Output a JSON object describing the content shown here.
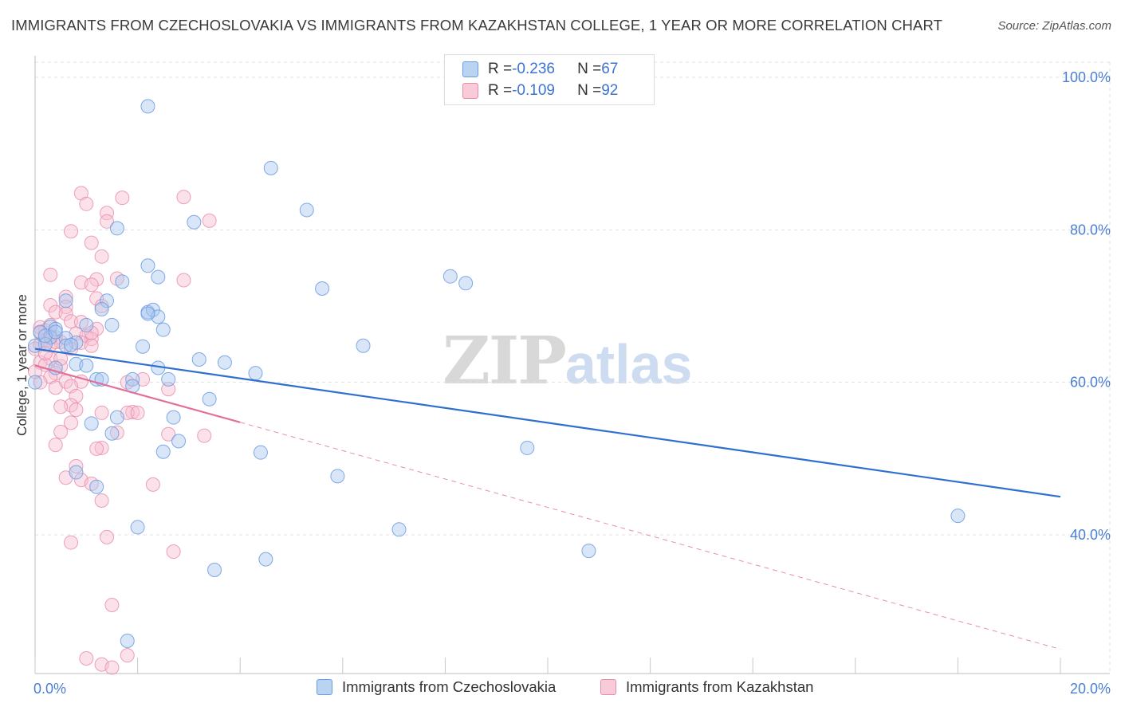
{
  "title": "IMMIGRANTS FROM CZECHOSLOVAKIA VS IMMIGRANTS FROM KAZAKHSTAN COLLEGE, 1 YEAR OR MORE CORRELATION CHART",
  "source": "Source: ZipAtlas.com",
  "watermark": {
    "zip": "ZIP",
    "atlas": "atlas"
  },
  "legend_top": {
    "rows": [
      {
        "r_label": "R = ",
        "r_value": "-0.236",
        "n_label": "N = ",
        "n_value": "67"
      },
      {
        "r_label": "R = ",
        "r_value": "-0.109",
        "n_label": "N = ",
        "n_value": "92"
      }
    ]
  },
  "legend_bottom": [
    "Immigrants from Czechoslovakia",
    "Immigrants from Kazakhstan"
  ],
  "colors": {
    "blue_fill": "#a9c8ef",
    "blue_stroke": "#6b9be0",
    "blue_line": "#2f6fd0",
    "pink_fill": "#f6bfd0",
    "pink_stroke": "#e98aaa",
    "pink_line": "#e2709a",
    "grid": "#e0e0e0",
    "tick_text": "#4a7fd6"
  },
  "chart_data": {
    "type": "scatter",
    "title": "IMMIGRANTS FROM CZECHOSLOVAKIA VS IMMIGRANTS FROM KAZAKHSTAN COLLEGE, 1 YEAR OR MORE CORRELATION CHART",
    "xlabel": "",
    "ylabel": "College, 1 year or more",
    "xlim": [
      0,
      20
    ],
    "ylim": [
      20,
      102
    ],
    "x_ticks": [
      "0.0%",
      "20.0%"
    ],
    "y_ticks": [
      {
        "value": 40,
        "label": "40.0%"
      },
      {
        "value": 60,
        "label": "60.0%"
      },
      {
        "value": 80,
        "label": "80.0%"
      },
      {
        "value": 100,
        "label": "100.0%"
      }
    ],
    "grid": true,
    "legend_position": "bottom",
    "series": [
      {
        "name": "Immigrants from Czechoslovakia",
        "color": "#6b9be0",
        "r": -0.236,
        "n": 67,
        "trend": {
          "x0": 0,
          "y0": 64.4,
          "x1": 20,
          "y1": 45.0,
          "dashed_after": null
        },
        "points": [
          [
            2.2,
            96.2
          ],
          [
            4.6,
            88.1
          ],
          [
            1.6,
            80.2
          ],
          [
            3.1,
            81.0
          ],
          [
            5.3,
            82.6
          ],
          [
            2.2,
            75.3
          ],
          [
            1.7,
            73.2
          ],
          [
            2.4,
            73.8
          ],
          [
            8.1,
            73.9
          ],
          [
            8.4,
            73.0
          ],
          [
            5.6,
            72.3
          ],
          [
            1.4,
            70.7
          ],
          [
            0.6,
            70.7
          ],
          [
            1.3,
            69.6
          ],
          [
            2.2,
            69.2
          ],
          [
            2.3,
            69.5
          ],
          [
            2.4,
            68.6
          ],
          [
            1.0,
            67.5
          ],
          [
            1.5,
            67.5
          ],
          [
            0.3,
            67.3
          ],
          [
            0.4,
            67.0
          ],
          [
            2.5,
            66.9
          ],
          [
            0.1,
            66.6
          ],
          [
            0.3,
            65.9
          ],
          [
            0.6,
            65.8
          ],
          [
            0.8,
            65.2
          ],
          [
            0.2,
            65.0
          ],
          [
            0.0,
            64.8
          ],
          [
            0.6,
            64.8
          ],
          [
            0.7,
            64.9
          ],
          [
            2.1,
            64.7
          ],
          [
            6.4,
            64.8
          ],
          [
            0.8,
            62.4
          ],
          [
            1.0,
            62.2
          ],
          [
            3.2,
            63.0
          ],
          [
            3.7,
            62.6
          ],
          [
            0.4,
            61.9
          ],
          [
            2.4,
            61.9
          ],
          [
            4.3,
            61.2
          ],
          [
            1.2,
            60.4
          ],
          [
            1.3,
            60.4
          ],
          [
            1.9,
            60.4
          ],
          [
            2.6,
            60.4
          ],
          [
            0.0,
            60.0
          ],
          [
            1.9,
            59.5
          ],
          [
            3.4,
            57.8
          ],
          [
            1.6,
            55.4
          ],
          [
            2.7,
            55.4
          ],
          [
            1.1,
            54.6
          ],
          [
            1.5,
            53.3
          ],
          [
            2.8,
            52.3
          ],
          [
            9.6,
            51.4
          ],
          [
            2.5,
            50.9
          ],
          [
            4.4,
            50.8
          ],
          [
            0.8,
            48.2
          ],
          [
            5.9,
            47.7
          ],
          [
            1.2,
            46.3
          ],
          [
            18.0,
            42.5
          ],
          [
            2.0,
            41.0
          ],
          [
            7.1,
            40.7
          ],
          [
            10.8,
            37.9
          ],
          [
            4.5,
            36.8
          ],
          [
            3.5,
            35.4
          ],
          [
            1.8,
            26.1
          ],
          [
            0.2,
            66.1
          ],
          [
            0.4,
            66.6
          ],
          [
            2.2,
            69.0
          ]
        ]
      },
      {
        "name": "Immigrants from Kazakhstan",
        "color": "#e98aaa",
        "r": -0.109,
        "n": 92,
        "trend": {
          "x0": 0,
          "y0": 62.2,
          "x1": 20,
          "y1": 25.0,
          "solid_until_x": 4.0
        },
        "points": [
          [
            0.9,
            84.8
          ],
          [
            1.0,
            83.4
          ],
          [
            1.7,
            84.2
          ],
          [
            2.9,
            84.3
          ],
          [
            1.4,
            82.2
          ],
          [
            1.4,
            81.1
          ],
          [
            3.4,
            81.2
          ],
          [
            0.7,
            79.8
          ],
          [
            1.1,
            78.3
          ],
          [
            1.3,
            76.5
          ],
          [
            0.3,
            74.1
          ],
          [
            1.2,
            73.5
          ],
          [
            1.6,
            73.6
          ],
          [
            2.9,
            73.4
          ],
          [
            0.9,
            73.1
          ],
          [
            1.1,
            72.8
          ],
          [
            0.6,
            71.2
          ],
          [
            1.2,
            71.0
          ],
          [
            0.3,
            70.1
          ],
          [
            0.6,
            69.9
          ],
          [
            0.4,
            69.2
          ],
          [
            0.6,
            69.0
          ],
          [
            0.7,
            68.0
          ],
          [
            0.9,
            67.9
          ],
          [
            1.2,
            67.0
          ],
          [
            0.1,
            67.2
          ],
          [
            0.2,
            66.8
          ],
          [
            0.1,
            66.5
          ],
          [
            0.3,
            66.1
          ],
          [
            0.4,
            65.9
          ],
          [
            0.8,
            66.4
          ],
          [
            1.0,
            66.1
          ],
          [
            1.1,
            65.7
          ],
          [
            0.2,
            65.5
          ],
          [
            0.5,
            65.3
          ],
          [
            0.1,
            65.0
          ],
          [
            0.3,
            64.9
          ],
          [
            0.9,
            65.2
          ],
          [
            1.1,
            64.8
          ],
          [
            0.0,
            64.4
          ],
          [
            0.7,
            64.4
          ],
          [
            0.3,
            63.1
          ],
          [
            0.1,
            62.6
          ],
          [
            0.2,
            62.3
          ],
          [
            0.5,
            62.1
          ],
          [
            0.4,
            61.2
          ],
          [
            0.3,
            60.7
          ],
          [
            0.6,
            60.1
          ],
          [
            0.9,
            60.1
          ],
          [
            0.1,
            60.0
          ],
          [
            1.8,
            60.0
          ],
          [
            2.1,
            60.4
          ],
          [
            0.4,
            59.3
          ],
          [
            0.7,
            59.5
          ],
          [
            2.6,
            59.1
          ],
          [
            0.8,
            58.2
          ],
          [
            0.7,
            57.0
          ],
          [
            0.5,
            56.8
          ],
          [
            0.8,
            56.4
          ],
          [
            1.3,
            56.0
          ],
          [
            1.9,
            56.1
          ],
          [
            1.8,
            56.0
          ],
          [
            2.0,
            56.0
          ],
          [
            0.7,
            54.7
          ],
          [
            0.5,
            53.5
          ],
          [
            1.6,
            53.4
          ],
          [
            2.6,
            53.2
          ],
          [
            3.3,
            53.0
          ],
          [
            0.4,
            51.8
          ],
          [
            1.3,
            51.4
          ],
          [
            1.2,
            51.3
          ],
          [
            0.8,
            49.0
          ],
          [
            0.6,
            47.5
          ],
          [
            0.9,
            47.2
          ],
          [
            1.1,
            46.7
          ],
          [
            2.3,
            46.6
          ],
          [
            1.3,
            44.5
          ],
          [
            1.4,
            39.7
          ],
          [
            0.7,
            39.0
          ],
          [
            2.7,
            37.8
          ],
          [
            1.5,
            30.8
          ],
          [
            1.0,
            23.8
          ],
          [
            1.8,
            24.2
          ],
          [
            1.3,
            23.0
          ],
          [
            1.5,
            22.6
          ],
          [
            1.3,
            70.0
          ],
          [
            0.2,
            63.8
          ],
          [
            0.4,
            65.3
          ],
          [
            0.0,
            61.4
          ],
          [
            0.5,
            63.1
          ],
          [
            1.1,
            66.5
          ],
          [
            0.3,
            67.5
          ]
        ]
      }
    ]
  }
}
